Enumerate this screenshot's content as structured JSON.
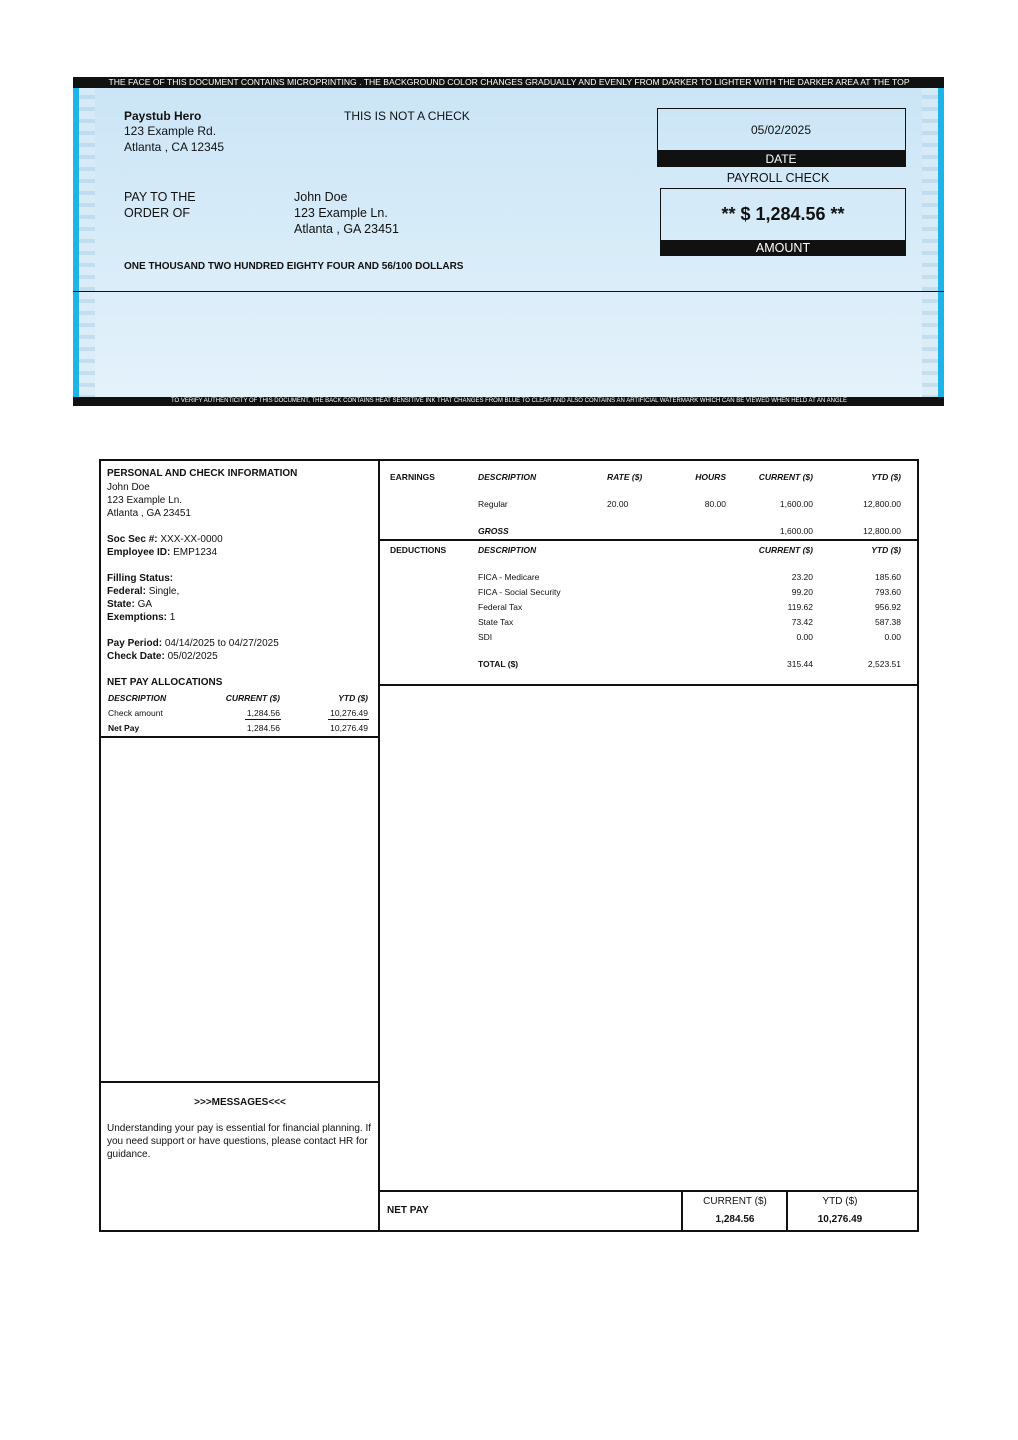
{
  "check": {
    "top_notice": "THE FACE OF THIS DOCUMENT CONTAINS MICROPRINTING . THE BACKGROUND COLOR CHANGES GRADUALLY AND EVENLY FROM DARKER TO LIGHTER WITH THE DARKER AREA AT THE TOP",
    "company": {
      "name": "Paystub Hero",
      "address_line1": "123 Example Rd.",
      "address_line2": "Atlanta , CA 12345"
    },
    "not_a_check": "THIS IS NOT A CHECK",
    "date": {
      "value": "05/02/2025",
      "label": "DATE"
    },
    "check_type": "PAYROLL CHECK",
    "amount": {
      "value": "** $ 1,284.56 **",
      "label": "AMOUNT"
    },
    "pay_to_label": [
      "PAY TO THE",
      "ORDER OF"
    ],
    "payee": [
      "John Doe",
      "123 Example Ln.",
      "Atlanta , GA 23451"
    ],
    "amount_in_words": "ONE THOUSAND TWO HUNDRED EIGHTY FOUR AND 56/100 DOLLARS",
    "bottom_notice": "TO VERIFY AUTHENTICITY OF THIS DOCUMENT, THE BACK CONTAINS HEAT SENSITIVE INK THAT CHANGES FROM BLUE TO CLEAR AND ALSO CONTAINS AN ARTIFICIAL WATERMARK WHICH CAN BE VIEWED WHEN HELD AT AN ANGLE"
  },
  "personal": {
    "heading": "PERSONAL AND CHECK INFORMATION",
    "lines": [
      "John Doe",
      "123 Example Ln.",
      "Atlanta , GA 23451"
    ],
    "fields": [
      {
        "label": "Soc Sec #:",
        "value": "XXX-XX-0000"
      },
      {
        "label": "Employee ID:",
        "value": "EMP1234"
      },
      {
        "label": "Filling Status:"
      },
      {
        "label": "Federal:",
        "value": "Single,"
      },
      {
        "label": "State:",
        "value": "GA"
      },
      {
        "label": "Exemptions:",
        "value": "1"
      },
      {
        "label": "Pay Period:",
        "value": "04/14/2025 to 04/27/2025"
      },
      {
        "label": "Check Date:",
        "value": "05/02/2025"
      }
    ]
  },
  "allocations": {
    "heading": "NET PAY ALLOCATIONS",
    "columns": [
      "DESCRIPTION",
      "CURRENT ($)",
      "YTD ($)"
    ],
    "rows": [
      [
        "Check amount",
        "1,284.56",
        "10,276.49"
      ],
      [
        "Net Pay",
        "1,284.56",
        "10,276.49"
      ]
    ]
  },
  "messages": {
    "heading": ">>>MESSAGES<<<",
    "text": "Understanding your pay is essential for financial planning. If you need support or have questions, please contact HR for guidance."
  },
  "earnings": {
    "label": "EARNINGS",
    "columns": [
      "DESCRIPTION",
      "RATE ($)",
      "HOURS",
      "CURRENT ($)",
      "YTD ($)"
    ],
    "rows": [
      [
        "Regular",
        "20.00",
        "80.00",
        "1,600.00",
        "12,800.00"
      ]
    ],
    "gross": [
      "GROSS",
      "1,600.00",
      "12,800.00"
    ]
  },
  "deductions": {
    "label": "DEDUCTIONS",
    "columns": [
      "DESCRIPTION",
      "CURRENT ($)",
      "YTD ($)"
    ],
    "rows": [
      [
        "FICA - Medicare",
        "23.20",
        "185.60"
      ],
      [
        "FICA - Social Security",
        "99.20",
        "793.60"
      ],
      [
        "Federal Tax",
        "119.62",
        "956.92"
      ],
      [
        "State Tax",
        "73.42",
        "587.38"
      ],
      [
        "SDI",
        "0.00",
        "0.00"
      ]
    ],
    "total": [
      "TOTAL ($)",
      "315.44",
      "2,523.51"
    ]
  },
  "net_pay": {
    "label": "NET PAY",
    "columns": [
      "CURRENT ($)",
      "YTD ($)"
    ],
    "values": [
      "1,284.56",
      "10,276.49"
    ]
  }
}
